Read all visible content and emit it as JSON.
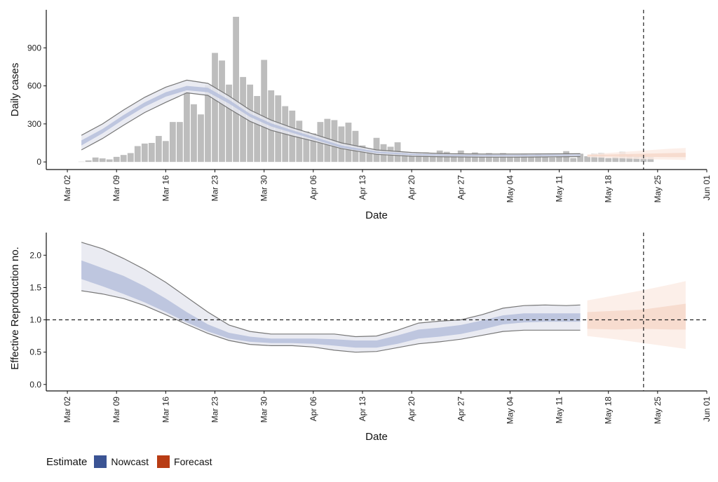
{
  "legend": {
    "title": "Estimate",
    "items": [
      {
        "label": "Nowcast",
        "color": "#3b5494"
      },
      {
        "label": "Forecast",
        "color": "#b83c14"
      }
    ]
  },
  "colors": {
    "bar": "#bdbdbd",
    "nowcast_outer": "#e6e8f0",
    "nowcast_inner": "#b6bfdc",
    "forecast_outer": "#fbece5",
    "forecast_inner": "#f6d8ca",
    "outline": "#777777"
  },
  "chart_data": [
    {
      "type": "bar",
      "xlabel": "Date",
      "ylabel": "Daily cases",
      "x_ticks": [
        "Mar 02",
        "Mar 09",
        "Mar 16",
        "Mar 23",
        "Mar 30",
        "Apr 06",
        "Apr 13",
        "Apr 20",
        "Apr 27",
        "May 04",
        "May 11",
        "May 18",
        "May 25",
        "Jun 01"
      ],
      "y_ticks": [
        0,
        300,
        600,
        900
      ],
      "ylim": [
        -60,
        1200
      ],
      "x_range": [
        "2020-02-28",
        "2020-06-01"
      ],
      "vline_date": "2020-05-23",
      "bars_start_date": "2020-03-04",
      "bars": [
        2,
        12,
        35,
        28,
        20,
        40,
        55,
        70,
        125,
        145,
        150,
        205,
        165,
        315,
        315,
        555,
        455,
        375,
        605,
        860,
        800,
        610,
        1145,
        670,
        610,
        520,
        805,
        565,
        525,
        440,
        405,
        325,
        240,
        225,
        315,
        340,
        330,
        280,
        310,
        245,
        130,
        95,
        190,
        140,
        120,
        155,
        80,
        65,
        70,
        75,
        70,
        90,
        80,
        60,
        90,
        60,
        75,
        45,
        70,
        40,
        70,
        50,
        55,
        65,
        45,
        65,
        40,
        35,
        40,
        85,
        30,
        65,
        45,
        65,
        70,
        30,
        40,
        80,
        55,
        45,
        60,
        40
      ],
      "series": [
        {
          "name": "Nowcast",
          "dates": [
            "2020-03-04",
            "2020-03-07",
            "2020-03-10",
            "2020-03-13",
            "2020-03-16",
            "2020-03-19",
            "2020-03-22",
            "2020-03-25",
            "2020-03-28",
            "2020-03-31",
            "2020-04-03",
            "2020-04-06",
            "2020-04-10",
            "2020-04-15",
            "2020-04-20",
            "2020-04-25",
            "2020-04-30",
            "2020-05-05",
            "2020-05-10",
            "2020-05-14"
          ],
          "upper": [
            210,
            300,
            410,
            510,
            590,
            645,
            620,
            520,
            410,
            330,
            270,
            220,
            150,
            95,
            75,
            65,
            62,
            62,
            64,
            65
          ],
          "inner_upper": [
            170,
            260,
            370,
            470,
            550,
            600,
            585,
            490,
            380,
            305,
            250,
            200,
            130,
            82,
            65,
            57,
            55,
            55,
            57,
            58
          ],
          "inner_lower": [
            130,
            225,
            335,
            435,
            515,
            565,
            550,
            460,
            355,
            280,
            230,
            180,
            112,
            70,
            55,
            48,
            46,
            46,
            48,
            49
          ],
          "lower": [
            95,
            185,
            290,
            390,
            470,
            545,
            525,
            420,
            320,
            250,
            205,
            165,
            105,
            60,
            45,
            40,
            38,
            38,
            40,
            42
          ]
        },
        {
          "name": "Forecast",
          "dates": [
            "2020-05-15",
            "2020-05-19",
            "2020-05-23",
            "2020-05-27",
            "2020-05-29"
          ],
          "upper": [
            60,
            75,
            90,
            105,
            110
          ],
          "inner_upper": [
            55,
            60,
            65,
            70,
            72
          ],
          "inner_lower": [
            45,
            42,
            40,
            38,
            38
          ],
          "lower": [
            38,
            30,
            22,
            18,
            15
          ]
        }
      ]
    },
    {
      "type": "area",
      "xlabel": "Date",
      "ylabel": "Effective Reproduction no.",
      "x_ticks": [
        "Mar 02",
        "Mar 09",
        "Mar 16",
        "Mar 23",
        "Mar 30",
        "Apr 06",
        "Apr 13",
        "Apr 20",
        "Apr 27",
        "May 04",
        "May 11",
        "May 18",
        "May 25",
        "Jun 01"
      ],
      "y_ticks": [
        0.0,
        0.5,
        1.0,
        1.5,
        2.0
      ],
      "ylim": [
        -0.1,
        2.35
      ],
      "x_range": [
        "2020-02-28",
        "2020-06-01"
      ],
      "hline": 1.0,
      "vline_date": "2020-05-23",
      "series": [
        {
          "name": "Nowcast",
          "dates": [
            "2020-03-04",
            "2020-03-07",
            "2020-03-10",
            "2020-03-13",
            "2020-03-16",
            "2020-03-19",
            "2020-03-22",
            "2020-03-25",
            "2020-03-28",
            "2020-03-31",
            "2020-04-03",
            "2020-04-06",
            "2020-04-09",
            "2020-04-12",
            "2020-04-15",
            "2020-04-18",
            "2020-04-21",
            "2020-04-24",
            "2020-04-27",
            "2020-04-30",
            "2020-05-03",
            "2020-05-06",
            "2020-05-09",
            "2020-05-12",
            "2020-05-14"
          ],
          "upper": [
            2.2,
            2.1,
            1.95,
            1.78,
            1.58,
            1.35,
            1.12,
            0.92,
            0.82,
            0.78,
            0.78,
            0.78,
            0.78,
            0.74,
            0.75,
            0.84,
            0.95,
            0.98,
            1.0,
            1.08,
            1.18,
            1.22,
            1.23,
            1.22,
            1.23
          ],
          "inner_upper": [
            1.92,
            1.8,
            1.68,
            1.52,
            1.33,
            1.12,
            0.93,
            0.8,
            0.74,
            0.71,
            0.71,
            0.71,
            0.7,
            0.68,
            0.68,
            0.76,
            0.85,
            0.88,
            0.92,
            0.99,
            1.07,
            1.1,
            1.1,
            1.1,
            1.1
          ],
          "inner_lower": [
            1.63,
            1.52,
            1.4,
            1.27,
            1.12,
            0.96,
            0.82,
            0.71,
            0.66,
            0.64,
            0.64,
            0.63,
            0.6,
            0.57,
            0.57,
            0.63,
            0.71,
            0.74,
            0.78,
            0.85,
            0.93,
            0.96,
            0.97,
            0.97,
            0.97
          ],
          "lower": [
            1.45,
            1.4,
            1.33,
            1.22,
            1.08,
            0.93,
            0.79,
            0.68,
            0.62,
            0.6,
            0.6,
            0.58,
            0.53,
            0.5,
            0.51,
            0.57,
            0.63,
            0.66,
            0.7,
            0.76,
            0.82,
            0.84,
            0.84,
            0.84,
            0.84
          ]
        },
        {
          "name": "Forecast",
          "dates": [
            "2020-05-15",
            "2020-05-19",
            "2020-05-23",
            "2020-05-27",
            "2020-05-29"
          ],
          "upper": [
            1.3,
            1.38,
            1.46,
            1.55,
            1.6
          ],
          "inner_upper": [
            1.12,
            1.14,
            1.16,
            1.22,
            1.25
          ],
          "inner_lower": [
            0.86,
            0.85,
            0.86,
            0.85,
            0.85
          ],
          "lower": [
            0.75,
            0.7,
            0.64,
            0.58,
            0.55
          ]
        }
      ]
    }
  ]
}
